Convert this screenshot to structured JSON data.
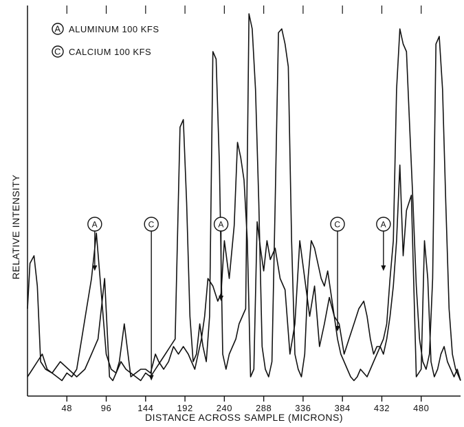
{
  "chart_data": {
    "type": "line",
    "xlabel": "DISTANCE ACROSS SAMPLE (MICRONS)",
    "ylabel": "RELATIVE INTENSITY",
    "xlim": [
      0,
      528
    ],
    "ylim": [
      0,
      100
    ],
    "x_ticks": [
      48,
      96,
      144,
      192,
      240,
      288,
      336,
      384,
      432,
      480
    ],
    "grid": false,
    "legend_position": "top-left",
    "legend": [
      {
        "marker": "A",
        "text": "ALUMINUM 100 KFS"
      },
      {
        "marker": "C",
        "text": "CALCIUM 100 KFS"
      }
    ],
    "series": [
      {
        "marker": "A",
        "x": [
          0,
          3,
          8,
          12,
          16,
          22,
          30,
          40,
          50,
          60,
          70,
          78,
          86,
          94,
          100,
          104,
          108,
          112,
          118,
          126,
          132,
          138,
          144,
          150,
          156,
          160,
          166,
          172,
          178,
          184,
          190,
          196,
          200,
          204,
          208,
          212,
          216,
          220,
          226,
          232,
          236,
          240,
          246,
          252,
          256,
          260,
          264,
          268,
          272,
          276,
          280,
          284,
          288,
          292,
          296,
          302,
          308,
          314,
          320,
          326,
          332,
          338,
          344,
          350,
          356,
          362,
          368,
          374,
          380,
          386,
          392,
          398,
          404,
          410,
          414,
          418,
          422,
          426,
          430,
          434,
          438,
          442,
          446,
          450,
          454,
          458,
          462,
          468,
          474,
          480,
          484,
          488,
          492,
          496,
          500,
          504,
          508,
          512,
          516,
          520,
          524,
          528
        ],
        "y": [
          22,
          34,
          36,
          28,
          8,
          6,
          5,
          8,
          6,
          4,
          6,
          10,
          14,
          30,
          4,
          3,
          5,
          8,
          18,
          4,
          5,
          6,
          6,
          5,
          10,
          8,
          6,
          8,
          12,
          10,
          12,
          10,
          8,
          6,
          10,
          14,
          20,
          30,
          28,
          24,
          26,
          40,
          30,
          44,
          66,
          62,
          56,
          40,
          4,
          6,
          45,
          38,
          32,
          40,
          35,
          38,
          30,
          27,
          10,
          18,
          40,
          30,
          20,
          28,
          12,
          18,
          25,
          20,
          18,
          10,
          14,
          18,
          22,
          24,
          20,
          14,
          10,
          12,
          12,
          10,
          14,
          20,
          28,
          40,
          60,
          36,
          48,
          52,
          4,
          6,
          40,
          30,
          8,
          4,
          6,
          10,
          12,
          8,
          6,
          4,
          6,
          3
        ]
      },
      {
        "marker": "C",
        "x": [
          0,
          6,
          12,
          18,
          24,
          30,
          36,
          42,
          48,
          54,
          60,
          66,
          72,
          78,
          84,
          90,
          96,
          102,
          108,
          114,
          120,
          126,
          132,
          138,
          144,
          150,
          156,
          162,
          168,
          174,
          180,
          186,
          190,
          194,
          198,
          202,
          206,
          210,
          214,
          218,
          222,
          226,
          230,
          234,
          238,
          242,
          246,
          250,
          254,
          258,
          262,
          266,
          270,
          274,
          278,
          282,
          286,
          290,
          294,
          298,
          302,
          306,
          310,
          314,
          318,
          322,
          326,
          330,
          334,
          338,
          342,
          346,
          350,
          354,
          358,
          362,
          366,
          370,
          374,
          378,
          382,
          386,
          390,
          394,
          398,
          402,
          406,
          410,
          414,
          418,
          422,
          426,
          430,
          434,
          438,
          442,
          446,
          450,
          454,
          458,
          462,
          466,
          470,
          474,
          478,
          482,
          486,
          490,
          494,
          498,
          502,
          506,
          510,
          514,
          518,
          522,
          528
        ],
        "y": [
          4,
          6,
          8,
          10,
          6,
          5,
          4,
          3,
          5,
          4,
          6,
          14,
          22,
          30,
          42,
          26,
          10,
          6,
          5,
          8,
          6,
          5,
          4,
          3,
          5,
          4,
          6,
          8,
          10,
          12,
          14,
          70,
          72,
          50,
          20,
          8,
          10,
          18,
          12,
          8,
          20,
          90,
          88,
          60,
          10,
          6,
          10,
          12,
          14,
          18,
          20,
          22,
          100,
          96,
          80,
          50,
          12,
          6,
          4,
          8,
          50,
          95,
          96,
          92,
          86,
          40,
          10,
          6,
          4,
          10,
          30,
          40,
          38,
          34,
          30,
          28,
          32,
          26,
          20,
          14,
          10,
          8,
          6,
          4,
          3,
          4,
          6,
          5,
          4,
          6,
          8,
          10,
          12,
          14,
          18,
          30,
          40,
          80,
          96,
          92,
          90,
          70,
          50,
          28,
          14,
          8,
          6,
          10,
          30,
          92,
          94,
          80,
          50,
          22,
          10,
          6,
          3
        ]
      }
    ],
    "annotations": [
      {
        "marker": "A",
        "x": 82,
        "y": 32
      },
      {
        "marker": "C",
        "x": 151,
        "y": 3
      },
      {
        "marker": "A",
        "x": 236,
        "y": 24
      },
      {
        "marker": "C",
        "x": 378,
        "y": 16
      },
      {
        "marker": "A",
        "x": 434,
        "y": 32
      }
    ]
  }
}
